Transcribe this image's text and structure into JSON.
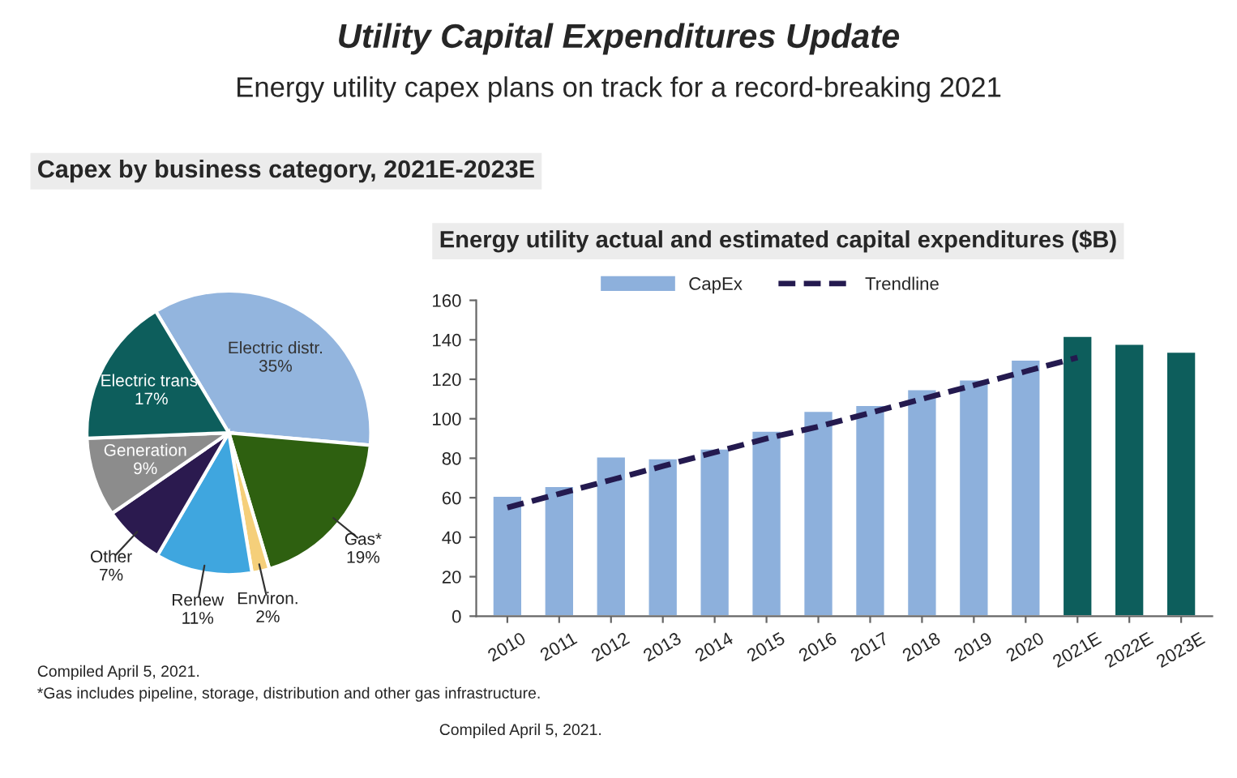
{
  "chart_data": [
    {
      "type": "other",
      "title": "Utility Capital Expenditures Update",
      "subtitle": "Energy utility capex plans on track for a record-breaking 2021"
    },
    {
      "type": "pie",
      "title": "Capex by business category, 2021E-2023E",
      "categories": [
        "Electric distr.",
        "Gas*",
        "Environ.",
        "Renew",
        "Other",
        "Generation",
        "Electric trans."
      ],
      "values": [
        35,
        19,
        2,
        11,
        7,
        9,
        17
      ],
      "value_labels": [
        "35%",
        "19%",
        "2%",
        "11%",
        "7%",
        "9%",
        "17%"
      ],
      "colors": [
        "#93b5de",
        "#2e6010",
        "#f5cf7a",
        "#3fa6df",
        "#2b1a4f",
        "#8c8c8c",
        "#0d5e5c"
      ],
      "annotations": [
        "Compiled April 5, 2021.",
        "*Gas includes pipeline, storage, distribution and other gas infrastructure."
      ]
    },
    {
      "type": "bar",
      "title": "Energy utility actual and estimated capital expenditures ($B)",
      "categories": [
        "2010",
        "2011",
        "2012",
        "2013",
        "2014",
        "2015",
        "2016",
        "2017",
        "2018",
        "2019",
        "2020",
        "2021E",
        "2022E",
        "2023E"
      ],
      "series": [
        {
          "name": "CapEx",
          "type": "bar",
          "color": "#8db0dc",
          "values": [
            61,
            66,
            81,
            80,
            85,
            94,
            104,
            107,
            115,
            120,
            130,
            142,
            138,
            134
          ],
          "colors": [
            "#8db0dc",
            "#8db0dc",
            "#8db0dc",
            "#8db0dc",
            "#8db0dc",
            "#8db0dc",
            "#8db0dc",
            "#8db0dc",
            "#8db0dc",
            "#8db0dc",
            "#8db0dc",
            "#0d5e5c",
            "#0d5e5c",
            "#0d5e5c"
          ]
        },
        {
          "name": "Trendline",
          "type": "line",
          "color": "#241a4f",
          "line_style": "dashed",
          "values": [
            55,
            62,
            69,
            76,
            83,
            90,
            96,
            103,
            110,
            117,
            124,
            131,
            null,
            null
          ]
        }
      ],
      "ylim": [
        0,
        160
      ],
      "yticks": [
        0,
        20,
        40,
        60,
        80,
        100,
        120,
        140,
        160
      ],
      "grid": false,
      "legend": "top",
      "annotations": [
        "Compiled April 5, 2021."
      ]
    }
  ]
}
